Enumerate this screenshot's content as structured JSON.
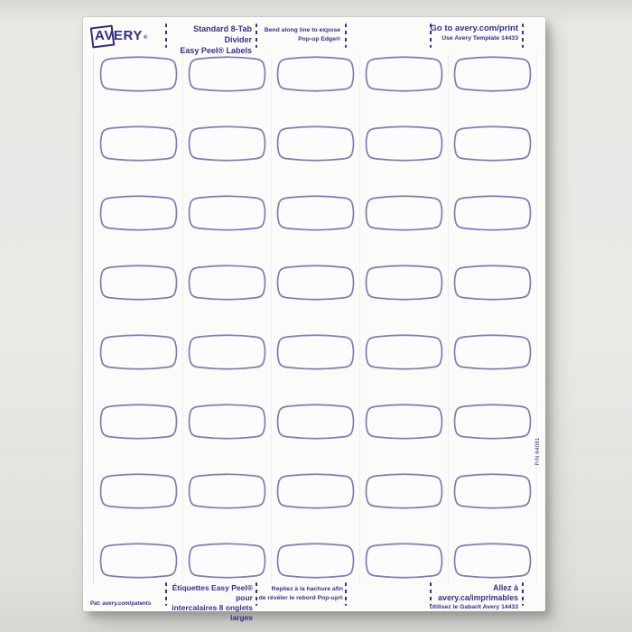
{
  "brand": {
    "name": "AVERY",
    "registered": "®"
  },
  "header": {
    "product": {
      "line1": "Standard 8-Tab Divider",
      "line2": "Easy Peel® Labels"
    },
    "instruction": {
      "line1": "Bend along line to expose",
      "line2": "Pop-up Edge®"
    },
    "web": {
      "line1": "Go to avery.com/print",
      "line2": "Use Avery Template 14433"
    }
  },
  "footer": {
    "product_fr": {
      "line1": "Étiquettes Easy Peel® pour",
      "line2": "intercalaires 8 onglets larges"
    },
    "instruction_fr": {
      "line1": "Repliez à la hachure afin",
      "line2": "de révéler le rebord Pop-up®"
    },
    "web_fr": {
      "line1": "Allez à avery.ca/imprimables",
      "line2": "Utilisez le Gabarit Avery 14433"
    },
    "patent": "Pat: avery.com/patents"
  },
  "side": {
    "part_number": "P/N 64081"
  },
  "grid": {
    "rows": 8,
    "columns": 5,
    "total_labels": 40
  },
  "colors": {
    "label_outline": "#7b7db5",
    "ink": "#34318b",
    "paper": "#fcfbfa",
    "background": "#e9e8e5"
  }
}
